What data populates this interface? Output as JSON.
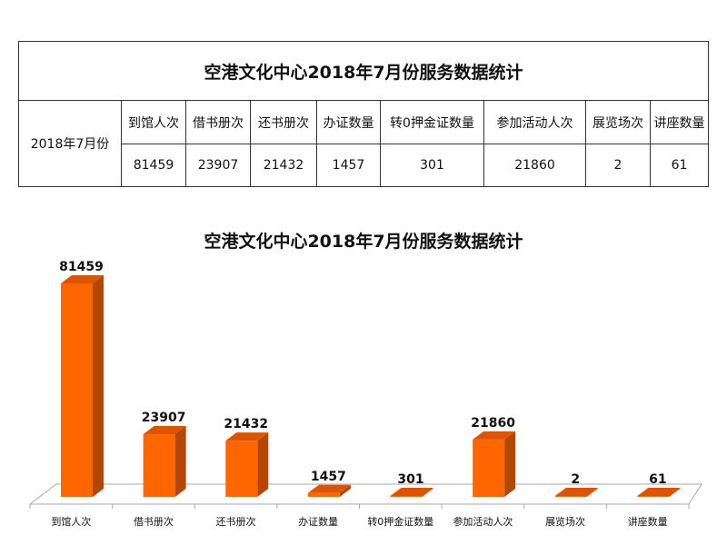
{
  "table": {
    "title": "空港文化中心2018年7月份服务数据统计",
    "row_label": "2018年7月份",
    "headers": [
      "到馆人次",
      "借书册次",
      "还书册次",
      "办证数量",
      "转0押金证数量",
      "参加活动人次",
      "展览场次",
      "讲座数量"
    ],
    "values": [
      "81459",
      "23907",
      "21432",
      "1457",
      "301",
      "21860",
      "2",
      "61"
    ]
  },
  "chart_data": {
    "type": "bar",
    "style": "3d",
    "title": "空港文化中心2018年7月份服务数据统计",
    "categories": [
      "到馆人次",
      "借书册次",
      "还书册次",
      "办证数量",
      "转0押金证数量",
      "参加活动人次",
      "展览场次",
      "讲座数量"
    ],
    "values": [
      81459,
      23907,
      21432,
      1457,
      301,
      21860,
      2,
      61
    ],
    "data_labels": [
      "81459",
      "23907",
      "21432",
      "1457",
      "301",
      "21860",
      "2",
      "61"
    ],
    "ylim": [
      0,
      81459
    ],
    "grid": false,
    "legend": "none",
    "colors": {
      "bar_front": "#FF6600",
      "bar_side": "#B34700",
      "bar_top": "#D95500"
    }
  }
}
